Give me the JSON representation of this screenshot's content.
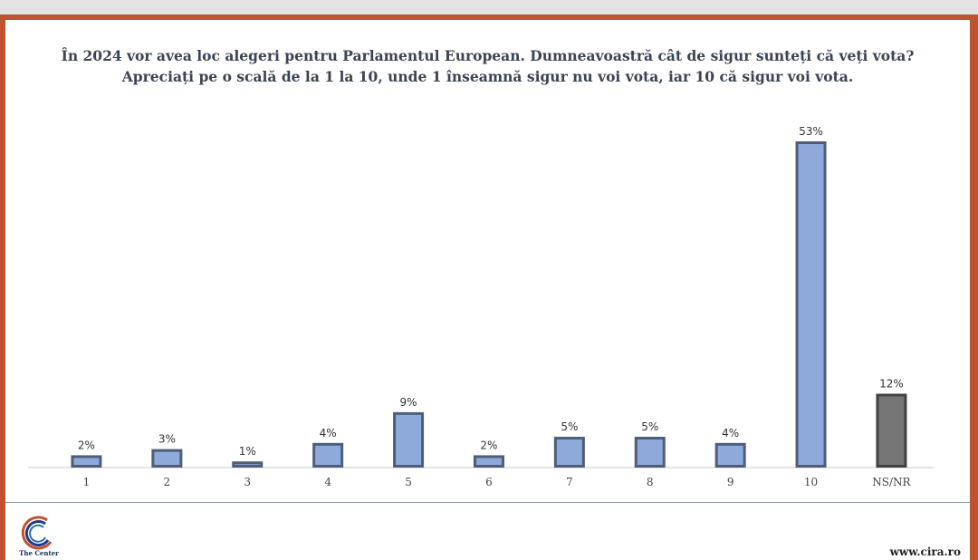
{
  "title": "În 2024 vor avea loc alegeri pentru Parlamentul European. Dumneavoastră cât de sigur sunteți că veți vota? Apreciați pe o scală de la 1 la 10, unde 1 înseamnă sigur nu voi vota, iar 10 că sigur voi vota.",
  "logo_text": "The Center",
  "site": "www.cira.ro",
  "colors": {
    "frame": "#c0522f",
    "bar_blue": "#8eaadb",
    "bar_gray": "#767676"
  },
  "chart_data": {
    "type": "bar",
    "title": "În 2024 vor avea loc alegeri pentru Parlamentul European. Dumneavoastră cât de sigur sunteți că veți vota? Apreciați pe o scală de la 1 la 10, unde 1 înseamnă sigur nu voi vota, iar 10 că sigur voi vota.",
    "categories": [
      "1",
      "2",
      "3",
      "4",
      "5",
      "6",
      "7",
      "8",
      "9",
      "10",
      "NS/NR"
    ],
    "values": [
      2,
      3,
      1,
      4,
      9,
      2,
      5,
      5,
      4,
      53,
      12
    ],
    "value_labels": [
      "2%",
      "3%",
      "1%",
      "4%",
      "9%",
      "2%",
      "5%",
      "5%",
      "4%",
      "53%",
      "12%"
    ],
    "bar_colors": [
      "#8eaadb",
      "#8eaadb",
      "#8eaadb",
      "#8eaadb",
      "#8eaadb",
      "#8eaadb",
      "#8eaadb",
      "#8eaadb",
      "#8eaadb",
      "#8eaadb",
      "#767676"
    ],
    "ylim": [
      0,
      53
    ],
    "grid": false,
    "legend": "none"
  }
}
